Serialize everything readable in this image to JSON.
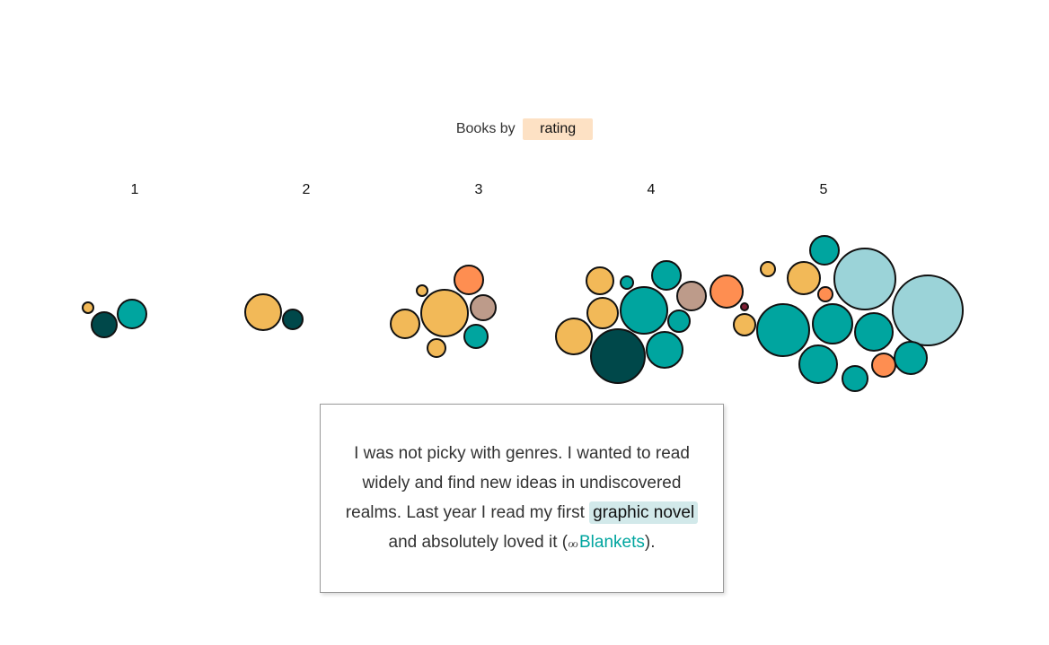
{
  "title": {
    "prefix": "Books by",
    "selector_value": "rating"
  },
  "colors": {
    "teal": "#00a59f",
    "dark_teal": "#00484a",
    "light_blue": "#9bd3d8",
    "yellow": "#f2b958",
    "orange": "#fe8e51",
    "taupe": "#bd9b8a",
    "maroon": "#7d1f35",
    "selector_bg": "#fde1c4",
    "highlight_bg": "#d2e9ea"
  },
  "chart_data": {
    "type": "bubble",
    "categories": [
      "1",
      "2",
      "3",
      "4",
      "5"
    ],
    "groups": [
      {
        "rating": "1",
        "books": [
          {
            "color": "yellow",
            "size": 6
          },
          {
            "color": "dark_teal",
            "size": 14
          },
          {
            "color": "teal",
            "size": 16
          }
        ]
      },
      {
        "rating": "2",
        "books": [
          {
            "color": "yellow",
            "size": 20
          },
          {
            "color": "dark_teal",
            "size": 11
          }
        ]
      },
      {
        "rating": "3",
        "books": [
          {
            "color": "yellow",
            "size": 6
          },
          {
            "color": "orange",
            "size": 16
          },
          {
            "color": "taupe",
            "size": 14
          },
          {
            "color": "yellow",
            "size": 16
          },
          {
            "color": "yellow",
            "size": 26
          },
          {
            "color": "teal",
            "size": 13
          },
          {
            "color": "yellow",
            "size": 10
          }
        ]
      },
      {
        "rating": "4",
        "books": [
          {
            "color": "yellow",
            "size": 15
          },
          {
            "color": "teal",
            "size": 7
          },
          {
            "color": "teal",
            "size": 16
          },
          {
            "color": "yellow",
            "size": 17
          },
          {
            "color": "teal",
            "size": 26
          },
          {
            "color": "taupe",
            "size": 16
          },
          {
            "color": "orange",
            "size": 18
          },
          {
            "color": "teal",
            "size": 12
          },
          {
            "color": "maroon",
            "size": 4
          },
          {
            "color": "yellow",
            "size": 20
          },
          {
            "color": "dark_teal",
            "size": 30
          },
          {
            "color": "teal",
            "size": 20
          },
          {
            "color": "yellow",
            "size": 12
          }
        ]
      },
      {
        "rating": "5",
        "books": [
          {
            "color": "yellow",
            "size": 8
          },
          {
            "color": "teal",
            "size": 16
          },
          {
            "color": "yellow",
            "size": 18
          },
          {
            "color": "light_blue",
            "size": 34
          },
          {
            "color": "orange",
            "size": 8
          },
          {
            "color": "teal",
            "size": 22
          },
          {
            "color": "teal",
            "size": 29
          },
          {
            "color": "teal",
            "size": 21
          },
          {
            "color": "light_blue",
            "size": 39
          },
          {
            "color": "teal",
            "size": 21
          },
          {
            "color": "teal",
            "size": 14
          },
          {
            "color": "orange",
            "size": 13
          },
          {
            "color": "teal",
            "size": 18
          }
        ]
      }
    ]
  },
  "story": {
    "line_part1": "I was not picky with genres. I wanted to read widely and find new ideas in undiscovered realms. Last year I read my first",
    "highlight": "graphic novel",
    "line_part2": "and absolutely loved it (",
    "glasses_icon": "reading-glasses",
    "glasses_glyph": "ℴℴ",
    "book_link": "Blankets",
    "line_end": ")."
  }
}
